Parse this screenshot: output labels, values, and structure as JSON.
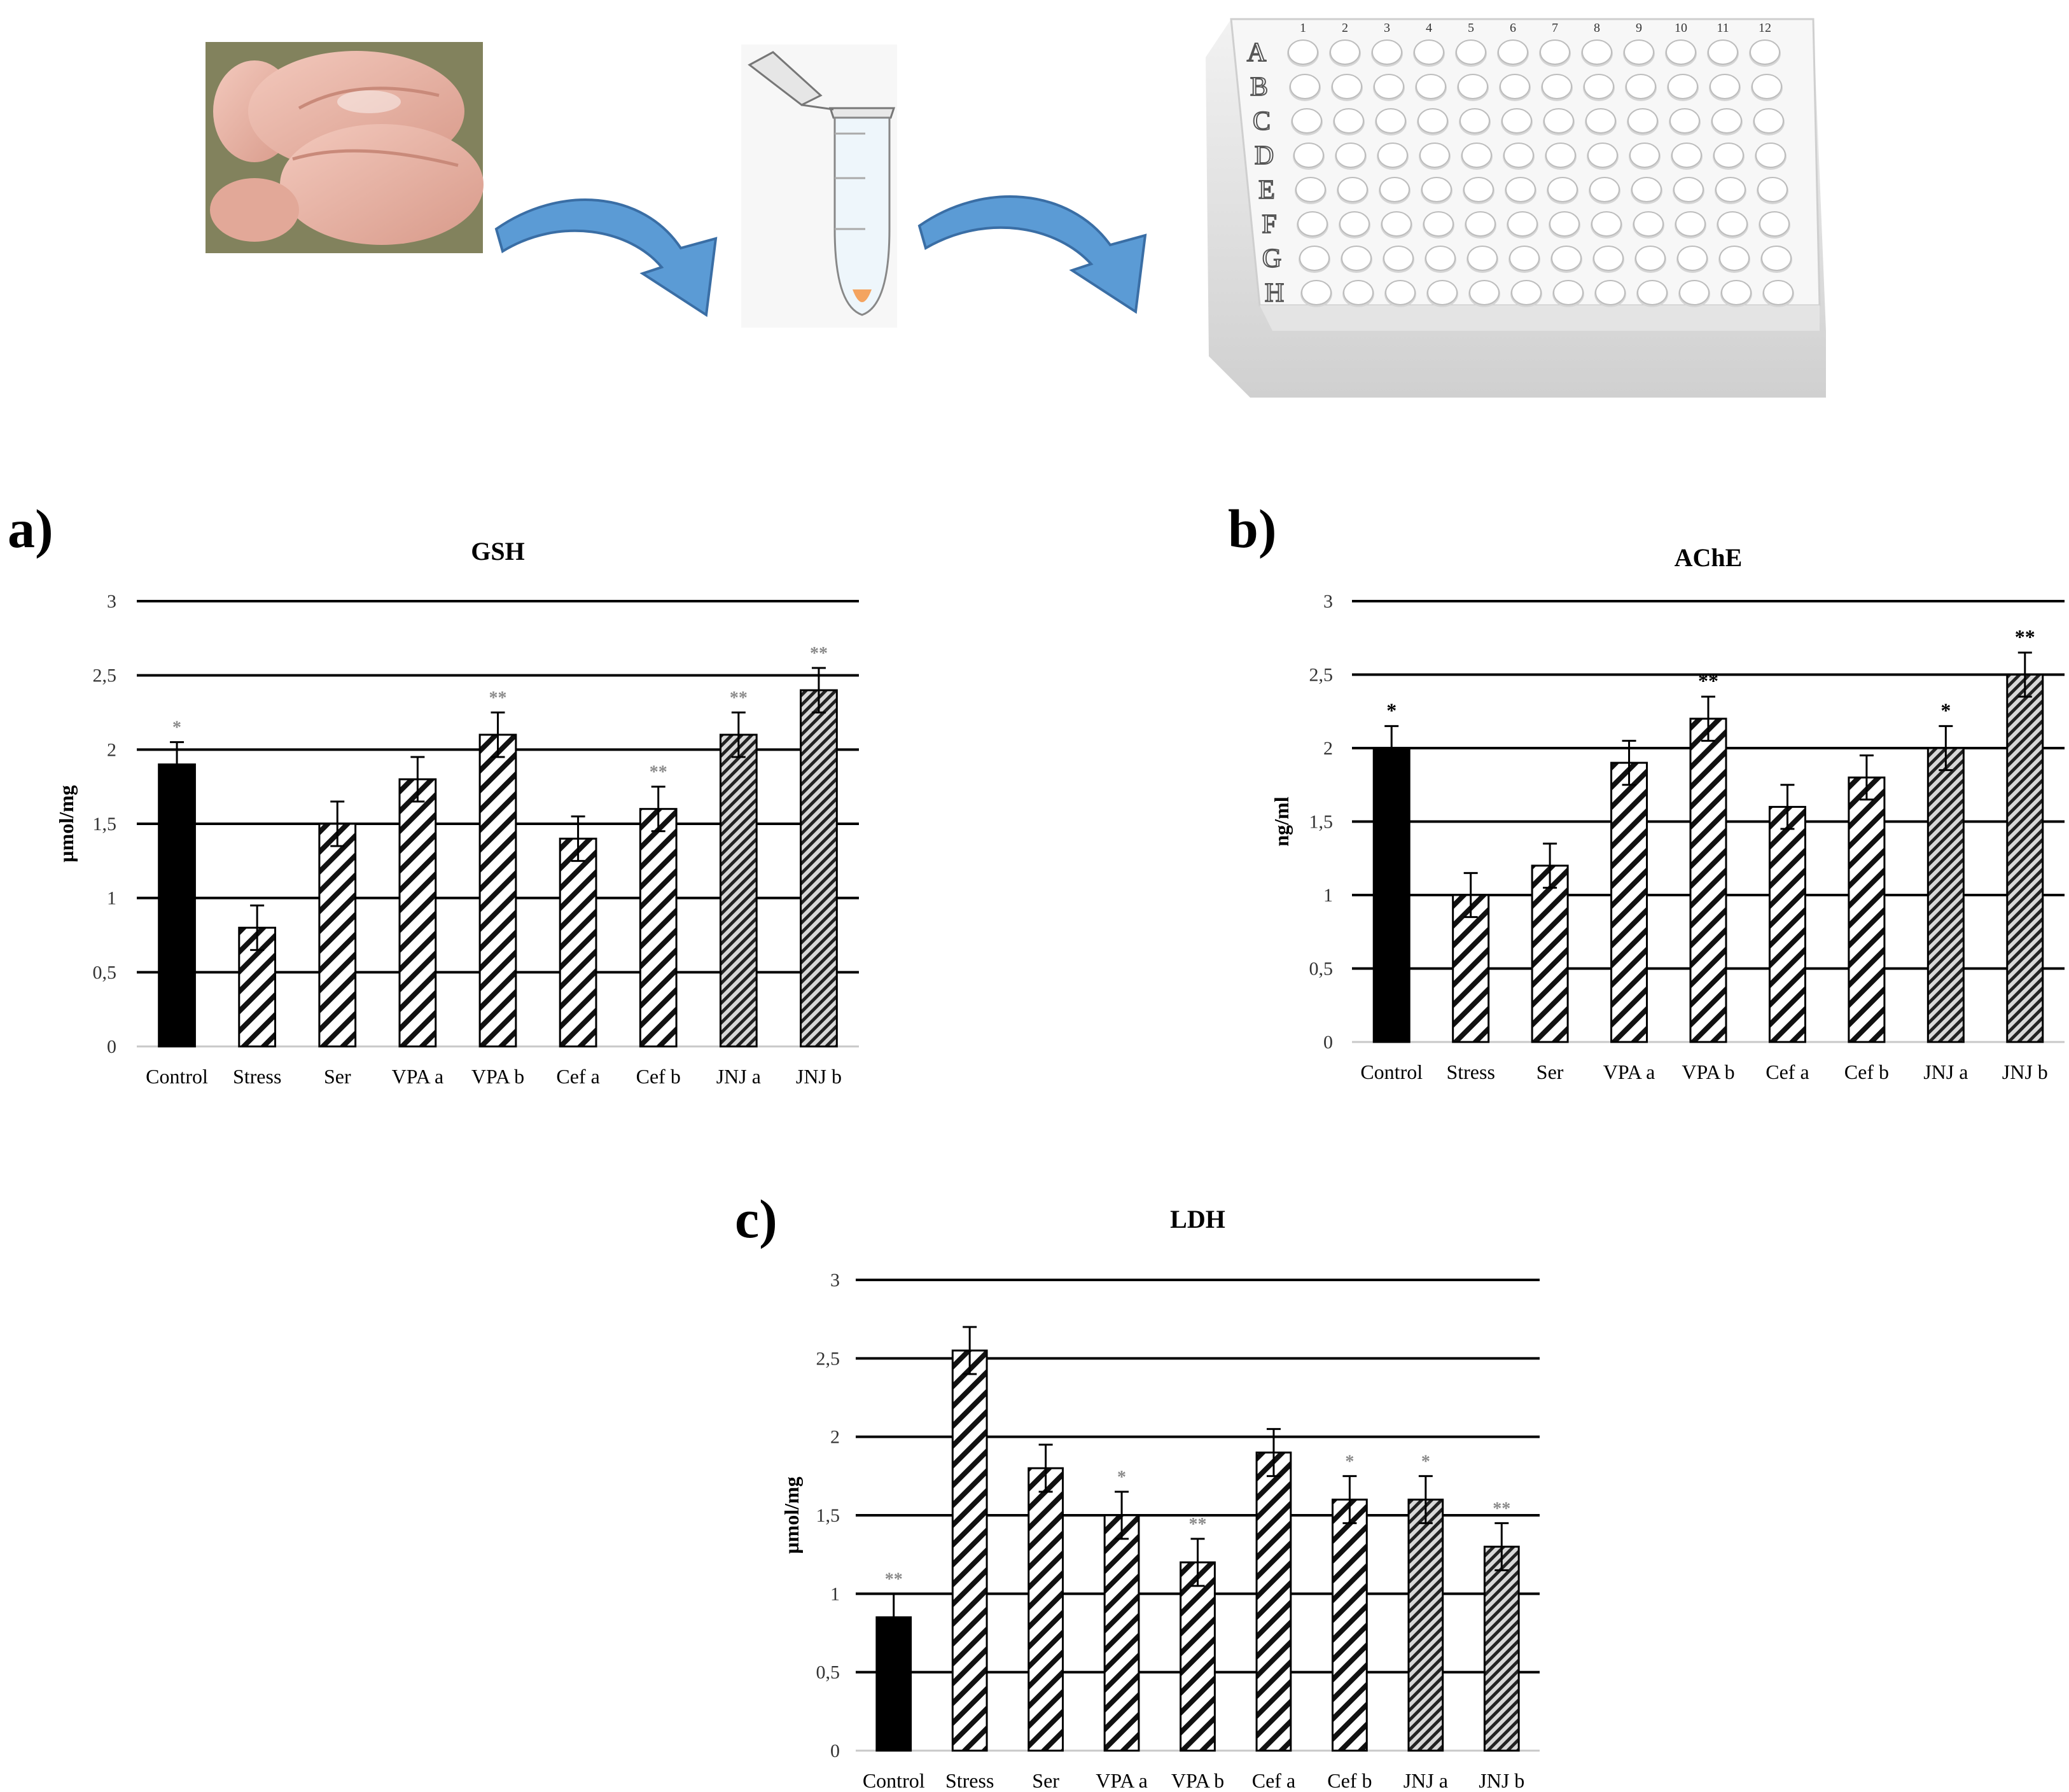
{
  "workflow": {
    "plate_columns": [
      "1",
      "2",
      "3",
      "4",
      "5",
      "6",
      "7",
      "8",
      "9",
      "10",
      "11",
      "12"
    ],
    "plate_rows": [
      "A",
      "B",
      "C",
      "D",
      "E",
      "F",
      "G",
      "H"
    ],
    "colors": {
      "arrow": "#5b9bd5",
      "arrow_edge": "#3a6ea5",
      "brain": "#e9b4a6",
      "pellet": "#f4a460"
    }
  },
  "chart_data": [
    {
      "type": "bar",
      "panel_label": "a)",
      "title": "GSH",
      "ylabel": "µmol/mg",
      "xlabel": "",
      "ylim": [
        0,
        3
      ],
      "yticks": [
        "0",
        "0,5",
        "1",
        "1,5",
        "2",
        "2,5",
        "3"
      ],
      "categories": [
        "Control",
        "Stress",
        "Ser",
        "VPA a",
        "VPA b",
        "Cef a",
        "Cef b",
        "JNJ a",
        "JNJ b"
      ],
      "values": [
        1.9,
        0.8,
        1.5,
        1.8,
        2.1,
        1.4,
        1.6,
        2.1,
        2.4
      ],
      "errors": [
        0.15,
        0.15,
        0.15,
        0.15,
        0.15,
        0.15,
        0.15,
        0.15,
        0.15
      ],
      "significance": [
        "*",
        "",
        "",
        "",
        "**",
        "",
        "**",
        "**",
        "**"
      ],
      "fills": [
        "solid",
        "hatch",
        "hatch",
        "hatch",
        "hatch",
        "hatch",
        "hatch",
        "dense",
        "dense"
      ],
      "grid": true
    },
    {
      "type": "bar",
      "panel_label": "b)",
      "title": "AChE",
      "ylabel": "ng/ml",
      "xlabel": "",
      "ylim": [
        0,
        3
      ],
      "yticks": [
        "0",
        "0,5",
        "1",
        "1,5",
        "2",
        "2,5",
        "3"
      ],
      "categories": [
        "Control",
        "Stress",
        "Ser",
        "VPA a",
        "VPA b",
        "Cef a",
        "Cef b",
        "JNJ a",
        "JNJ b"
      ],
      "values": [
        2.0,
        1.0,
        1.2,
        1.9,
        2.2,
        1.6,
        1.8,
        2.0,
        2.5
      ],
      "errors": [
        0.15,
        0.15,
        0.15,
        0.15,
        0.15,
        0.15,
        0.15,
        0.15,
        0.15
      ],
      "significance": [
        "*",
        "",
        "",
        "",
        "**",
        "",
        "",
        "*",
        "**"
      ],
      "fills": [
        "solid",
        "hatch",
        "hatch",
        "hatch",
        "hatch",
        "hatch",
        "hatch",
        "dense",
        "dense"
      ],
      "grid": true
    },
    {
      "type": "bar",
      "panel_label": "c)",
      "title": "LDH",
      "ylabel": "µmol/mg",
      "xlabel": "",
      "ylim": [
        0,
        3
      ],
      "yticks": [
        "0",
        "0,5",
        "1",
        "1,5",
        "2",
        "2,5",
        "3"
      ],
      "categories": [
        "Control",
        "Stress",
        "Ser",
        "VPA a",
        "VPA b",
        "Cef a",
        "Cef b",
        "JNJ a",
        "JNJ b"
      ],
      "values": [
        0.85,
        2.55,
        1.8,
        1.5,
        1.2,
        1.9,
        1.6,
        1.6,
        1.3
      ],
      "errors": [
        0.15,
        0.15,
        0.15,
        0.15,
        0.15,
        0.15,
        0.15,
        0.15,
        0.15
      ],
      "significance": [
        "**",
        "",
        "",
        "*",
        "**",
        "",
        "*",
        "*",
        "**"
      ],
      "fills": [
        "solid",
        "hatch",
        "hatch",
        "hatch",
        "hatch",
        "hatch",
        "hatch",
        "dense",
        "dense"
      ],
      "grid": true
    }
  ]
}
